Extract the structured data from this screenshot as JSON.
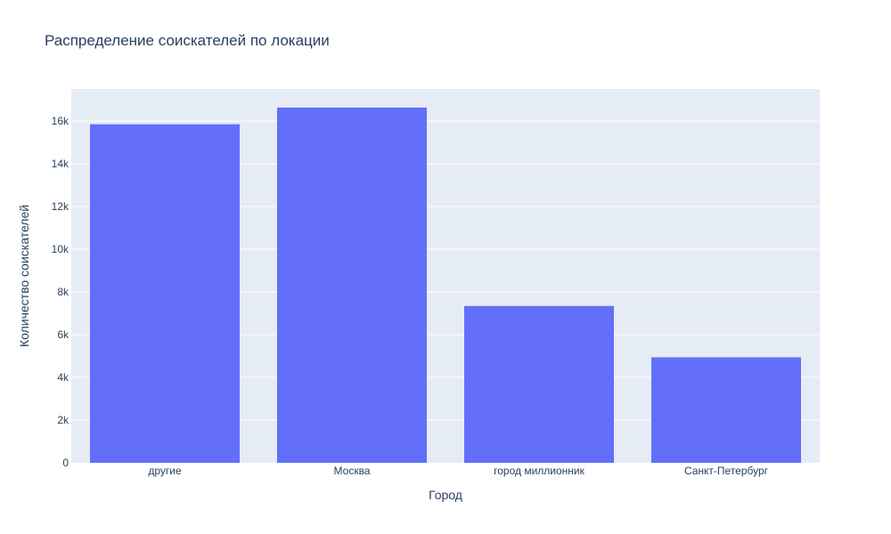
{
  "chart_data": {
    "type": "bar",
    "title": "Распределение соискателей по локации",
    "xlabel": "Город",
    "ylabel": "Количество соискателей",
    "categories": [
      "другие",
      "Москва",
      "город миллионник",
      "Санкт-Петербург"
    ],
    "values": [
      15850,
      16630,
      7340,
      4940
    ],
    "ylim": [
      0,
      17500
    ],
    "yticks": [
      0,
      2000,
      4000,
      6000,
      8000,
      10000,
      12000,
      14000,
      16000
    ],
    "ytick_labels": [
      "0",
      "2k",
      "4k",
      "6k",
      "8k",
      "10k",
      "12k",
      "14k",
      "16k"
    ],
    "grid": true,
    "legend": "none",
    "colors": {
      "bar": "#636efa",
      "plot_bg": "#e5ecf6",
      "grid": "#ffffff",
      "text": "#2a3f5f"
    }
  }
}
